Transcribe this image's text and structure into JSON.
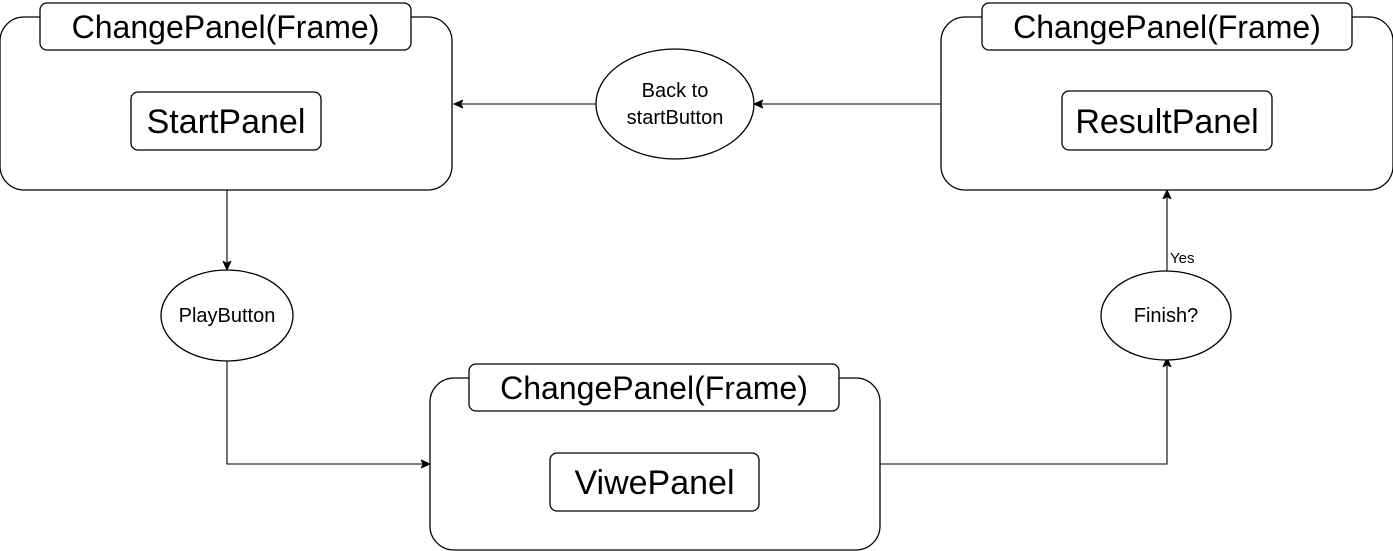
{
  "diagram": {
    "frames": [
      {
        "id": "start-frame",
        "label": "ChangePanel(Frame)",
        "panel": "StartPanel"
      },
      {
        "id": "result-frame",
        "label": "ChangePanel(Frame)",
        "panel": "ResultPanel"
      },
      {
        "id": "view-frame",
        "label": "ChangePanel(Frame)",
        "panel": "ViwePanel"
      }
    ],
    "nodes": {
      "back": {
        "line1": "Back to",
        "line2": "startButton"
      },
      "play": {
        "label": "PlayButton"
      },
      "finish": {
        "label": "Finish?"
      }
    },
    "edges": {
      "finish_to_result_label": "Yes"
    }
  }
}
